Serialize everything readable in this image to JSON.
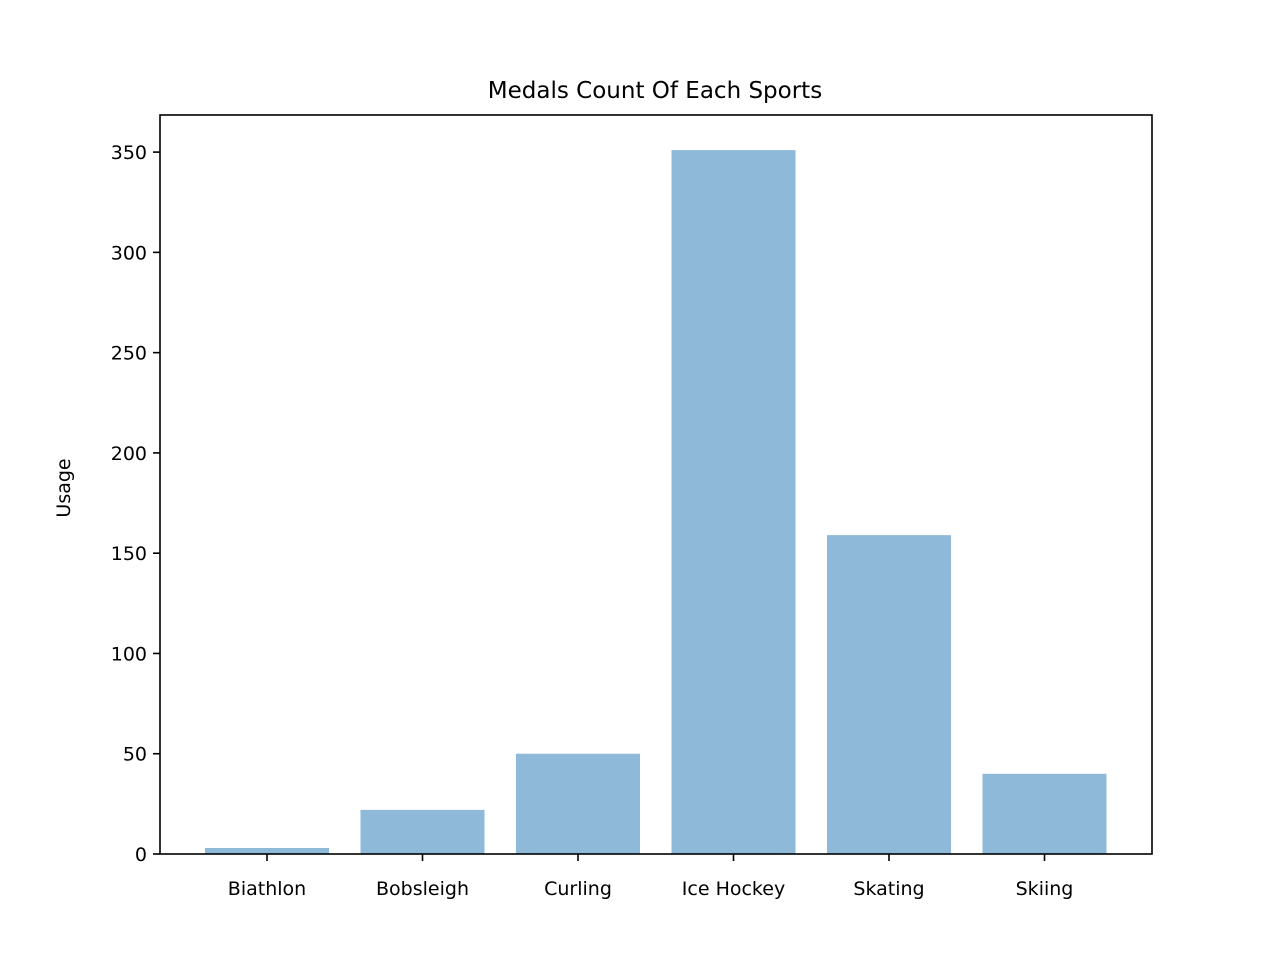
{
  "chart_data": {
    "type": "bar",
    "title": "Medals Count Of Each Sports",
    "xlabel": "",
    "ylabel": "Usage",
    "categories": [
      "Biathlon",
      "Bobsleigh",
      "Curling",
      "Ice Hockey",
      "Skating",
      "Skiing"
    ],
    "values": [
      3,
      22,
      50,
      351,
      159,
      40
    ],
    "ylim": [
      0,
      368.5
    ],
    "yticks": [
      0,
      50,
      100,
      150,
      200,
      250,
      300,
      350
    ],
    "bar_color": "#8eb9d9",
    "grid": false,
    "legend": "none"
  }
}
